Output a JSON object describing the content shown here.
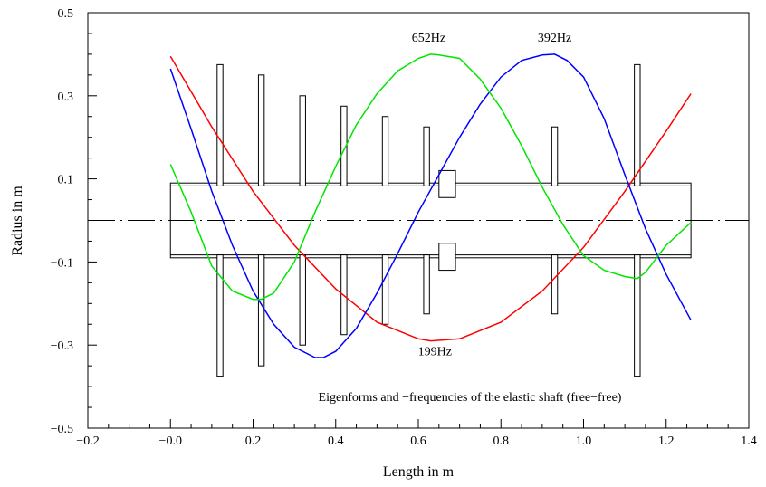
{
  "chart_data": {
    "type": "line",
    "title": "",
    "xlabel": "Length in m",
    "ylabel": "Radius in m",
    "xlim": [
      -0.2,
      1.4
    ],
    "ylim": [
      -0.5,
      0.5
    ],
    "x_ticks": [
      -0.2,
      0.0,
      0.2,
      0.4,
      0.6,
      0.8,
      1.0,
      1.2,
      1.4
    ],
    "x_tick_labels": [
      "−0.2",
      "−0.0",
      "0.2",
      "0.4",
      "0.6",
      "0.8",
      "1.0",
      "1.2",
      "1.4"
    ],
    "y_ticks": [
      -0.5,
      -0.3,
      -0.1,
      0.1,
      0.3,
      0.5
    ],
    "y_tick_labels": [
      "−0.5",
      "−0.3",
      "−0.1",
      "0.1",
      "0.3",
      "0.5"
    ],
    "annotation": "Eigenforms and −frequencies of the elastic shaft (free−free)",
    "grid": false,
    "centerline": {
      "y": 0.0,
      "style": "dash-dot"
    },
    "shaft": {
      "body": {
        "x": [
          0.0,
          1.26
        ],
        "r": 0.09
      },
      "inner_r": 0.083,
      "discs": [
        {
          "x": 0.12,
          "r": 0.375
        },
        {
          "x": 0.22,
          "r": 0.35
        },
        {
          "x": 0.32,
          "r": 0.3
        },
        {
          "x": 0.42,
          "r": 0.275
        },
        {
          "x": 0.52,
          "r": 0.25
        },
        {
          "x": 0.62,
          "r": 0.225
        },
        {
          "x": 0.93,
          "r": 0.225
        },
        {
          "x": 1.13,
          "r": 0.375
        }
      ],
      "disc_width": 0.014,
      "hub": {
        "x": [
          0.65,
          0.69
        ],
        "r_inner": 0.055,
        "r_outer": 0.12
      }
    },
    "series": [
      {
        "name": "199Hz",
        "color": "#ff0000",
        "x": [
          0.0,
          0.1,
          0.2,
          0.3,
          0.4,
          0.5,
          0.6,
          0.63,
          0.7,
          0.8,
          0.9,
          1.0,
          1.1,
          1.2,
          1.26
        ],
        "y": [
          0.395,
          0.225,
          0.07,
          -0.06,
          -0.165,
          -0.245,
          -0.285,
          -0.29,
          -0.285,
          -0.245,
          -0.17,
          -0.065,
          0.07,
          0.215,
          0.305
        ]
      },
      {
        "name": "392Hz",
        "color": "#0000ff",
        "x": [
          0.0,
          0.05,
          0.1,
          0.15,
          0.2,
          0.25,
          0.3,
          0.35,
          0.37,
          0.4,
          0.45,
          0.5,
          0.55,
          0.6,
          0.65,
          0.7,
          0.75,
          0.8,
          0.85,
          0.9,
          0.93,
          0.96,
          1.0,
          1.05,
          1.1,
          1.15,
          1.2,
          1.26
        ],
        "y": [
          0.365,
          0.22,
          0.07,
          -0.06,
          -0.17,
          -0.25,
          -0.305,
          -0.33,
          -0.33,
          -0.315,
          -0.26,
          -0.175,
          -0.08,
          0.02,
          0.11,
          0.2,
          0.28,
          0.345,
          0.385,
          0.398,
          0.4,
          0.385,
          0.345,
          0.245,
          0.11,
          -0.02,
          -0.13,
          -0.24
        ]
      },
      {
        "name": "652Hz",
        "color": "#00e600",
        "x": [
          0.0,
          0.05,
          0.1,
          0.15,
          0.2,
          0.22,
          0.25,
          0.3,
          0.35,
          0.4,
          0.45,
          0.5,
          0.55,
          0.6,
          0.63,
          0.65,
          0.7,
          0.75,
          0.8,
          0.85,
          0.9,
          0.95,
          1.0,
          1.05,
          1.1,
          1.13,
          1.15,
          1.2,
          1.26
        ],
        "y": [
          0.135,
          0.02,
          -0.11,
          -0.17,
          -0.19,
          -0.19,
          -0.175,
          -0.1,
          0.02,
          0.13,
          0.23,
          0.305,
          0.36,
          0.39,
          0.4,
          0.398,
          0.39,
          0.34,
          0.27,
          0.18,
          0.08,
          -0.01,
          -0.085,
          -0.12,
          -0.135,
          -0.14,
          -0.125,
          -0.06,
          -0.005
        ]
      }
    ],
    "labels": [
      {
        "text": "199Hz",
        "x": 0.64,
        "y": -0.325
      },
      {
        "text": "392Hz",
        "x": 0.93,
        "y": 0.43
      },
      {
        "text": "652Hz",
        "x": 0.625,
        "y": 0.43
      }
    ]
  }
}
